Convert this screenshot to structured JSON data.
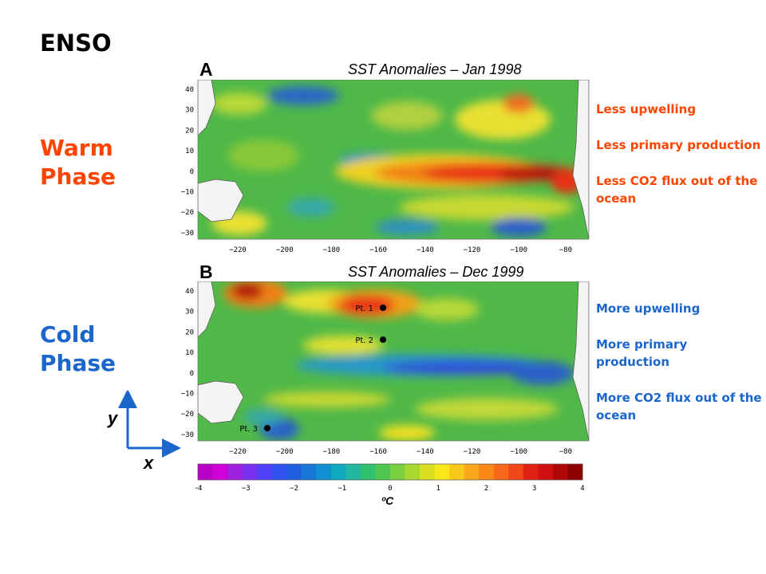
{
  "title": "ENSO",
  "warm_phase": "Warm\nPhase",
  "cold_phase": "Cold\nPhase",
  "panel_a": {
    "letter": "A",
    "title": "SST Anomalies – Jan 1998"
  },
  "panel_b": {
    "letter": "B",
    "title": "SST Anomalies – Dec 1999"
  },
  "map_lat_ticks": [
    "40",
    "30",
    "20",
    "10",
    "0",
    "−10",
    "−20",
    "−30"
  ],
  "map_lon_ticks": [
    "−220",
    "−200",
    "−180",
    "−160",
    "−140",
    "−120",
    "−100",
    "−80"
  ],
  "warm_notes": [
    "Less upwelling",
    "Less primary production",
    "Less CO2 flux out of the ocean"
  ],
  "cold_notes": [
    "More upwelling",
    "More primary production",
    "More CO2 flux out of the ocean"
  ],
  "points": [
    {
      "label": "Pt. 1"
    },
    {
      "label": "Pt. 2"
    },
    {
      "label": "Pt. 3"
    }
  ],
  "axis_indicator": {
    "y_label": "y",
    "x_label": "x"
  },
  "colorbar": {
    "ticks": [
      "−4",
      "−3",
      "−2",
      "−1",
      "0",
      "1",
      "2",
      "3",
      "4"
    ],
    "unit": "ºC",
    "colors": [
      "#b800c8",
      "#d000d8",
      "#a020e0",
      "#7a30f0",
      "#5040f8",
      "#3050f0",
      "#2060e0",
      "#1878d8",
      "#1090d0",
      "#10a8c0",
      "#20b8a0",
      "#30c070",
      "#50c850",
      "#7ad040",
      "#a8d830",
      "#d8e020",
      "#f8e818",
      "#f8c818",
      "#f8a818",
      "#f88818",
      "#f86818",
      "#f04818",
      "#e02010",
      "#d01010",
      "#b00808",
      "#900000"
    ]
  },
  "colors": {
    "warm": "#ff4400",
    "cold": "#1a66cc"
  }
}
